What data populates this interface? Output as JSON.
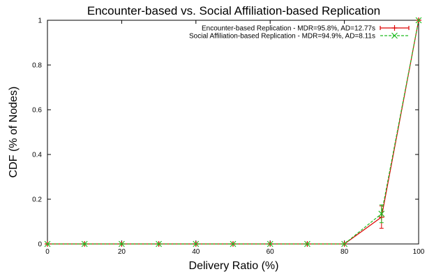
{
  "chart_data": {
    "type": "line",
    "title": "Encounter-based vs. Social Affiliation-based Replication",
    "xlabel": "Delivery Ratio (%)",
    "ylabel": "CDF (% of Nodes)",
    "xlim": [
      0,
      100
    ],
    "ylim": [
      0,
      1
    ],
    "xticks": [
      0,
      20,
      40,
      60,
      80,
      100
    ],
    "yticks": [
      0,
      0.2,
      0.4,
      0.6,
      0.8,
      1
    ],
    "xtick_labels": [
      "0",
      "20",
      "40",
      "60",
      "80",
      "100"
    ],
    "ytick_labels": [
      "0",
      "0.2",
      "0.4",
      "0.6",
      "0.8",
      "1"
    ],
    "grid": false,
    "legend_position": "top-right",
    "x": [
      0,
      10,
      20,
      30,
      40,
      50,
      60,
      70,
      80,
      90,
      100
    ],
    "series": [
      {
        "name": "Encounter-based Replication - MDR=95.8%, AD=12.77s",
        "color": "#dd0000",
        "marker": "plus",
        "line": "solid",
        "values": [
          0,
          0,
          0,
          0,
          0,
          0,
          0,
          0,
          0,
          0.12,
          1
        ],
        "errors": [
          0,
          0,
          0,
          0,
          0,
          0,
          0,
          0,
          0,
          0.05,
          0
        ]
      },
      {
        "name": "Social Affiliation-based Replication - MDR=94.9%, AD=8.11s",
        "color": "#22bb22",
        "marker": "x",
        "line": "dashed",
        "values": [
          0,
          0,
          0,
          0,
          0,
          0,
          0,
          0,
          0,
          0.135,
          1
        ],
        "errors": [
          0,
          0,
          0,
          0,
          0,
          0,
          0,
          0,
          0,
          0.04,
          0
        ]
      }
    ]
  }
}
